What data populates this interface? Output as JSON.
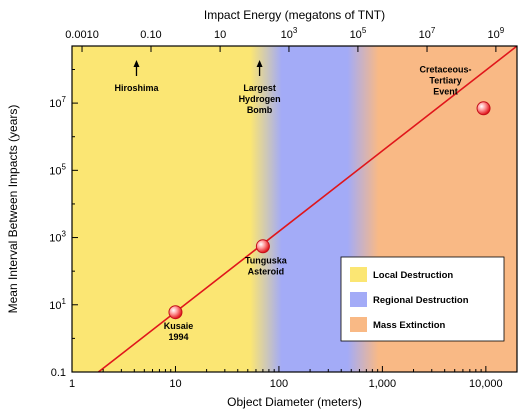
{
  "chart_data": {
    "type": "line",
    "x_axis": {
      "label": "Object Diameter (meters)",
      "scale": "log",
      "range": [
        1,
        20000
      ],
      "ticks": [
        1,
        10,
        100,
        1000,
        10000
      ],
      "tick_labels": [
        "1",
        "10",
        "100",
        "1,000",
        "10,000"
      ]
    },
    "y_axis": {
      "label": "Mean Interval Between Impacts (years)",
      "scale": "log",
      "range": [
        0.1,
        500000000
      ],
      "ticks": [
        0.1,
        10,
        1000,
        100000,
        10000000
      ],
      "tick_labels": [
        {
          "base": "0.1",
          "exp": ""
        },
        {
          "base": "10",
          "exp": "1"
        },
        {
          "base": "10",
          "exp": "3"
        },
        {
          "base": "10",
          "exp": "5"
        },
        {
          "base": "10",
          "exp": "7"
        }
      ]
    },
    "top_axis": {
      "label": "Impact Energy (megatons of TNT)",
      "tick_labels": [
        {
          "base": "0.0010",
          "exp": ""
        },
        {
          "base": "0.10",
          "exp": ""
        },
        {
          "base": "10",
          "exp": ""
        },
        {
          "base": "10",
          "exp": "3"
        },
        {
          "base": "10",
          "exp": "5"
        },
        {
          "base": "10",
          "exp": "7"
        },
        {
          "base": "10",
          "exp": "9"
        }
      ],
      "at_diameter": [
        1.25,
        5.8,
        27,
        125,
        580,
        2700,
        12500
      ]
    },
    "series": [
      {
        "x": [
          1.8,
          20000
        ],
        "y": [
          0.1,
          500000000
        ],
        "color": "#e0161b"
      }
    ],
    "points": [
      {
        "label": [
          "Kusaie",
          "1994"
        ],
        "x": 10,
        "y": 6
      },
      {
        "label": [
          "Tunguska",
          "Asteroid"
        ],
        "x": 70,
        "y": 550
      },
      {
        "label": [
          "Cretaceous-",
          "Tertiary",
          "Event"
        ],
        "x": 9500,
        "y": 7000000
      }
    ],
    "regions": [
      {
        "name": "Local Destruction",
        "x_range": [
          1,
          75
        ],
        "color": "#fbe673"
      },
      {
        "name": "Regional Destruction",
        "x_range": [
          75,
          650
        ],
        "color": "#a3abf7"
      },
      {
        "name": "Mass Extinction",
        "x_range": [
          650,
          20000
        ],
        "color": "#f9b985"
      }
    ],
    "event_markers": [
      {
        "label": [
          "Hiroshima"
        ],
        "x": 4.2
      },
      {
        "label": [
          "Largest",
          "Hydrogen",
          "Bomb"
        ],
        "x": 65
      }
    ],
    "legend": {
      "placement": "bottom-right",
      "items": [
        "Local Destruction",
        "Regional Destruction",
        "Mass Extinction"
      ]
    }
  }
}
